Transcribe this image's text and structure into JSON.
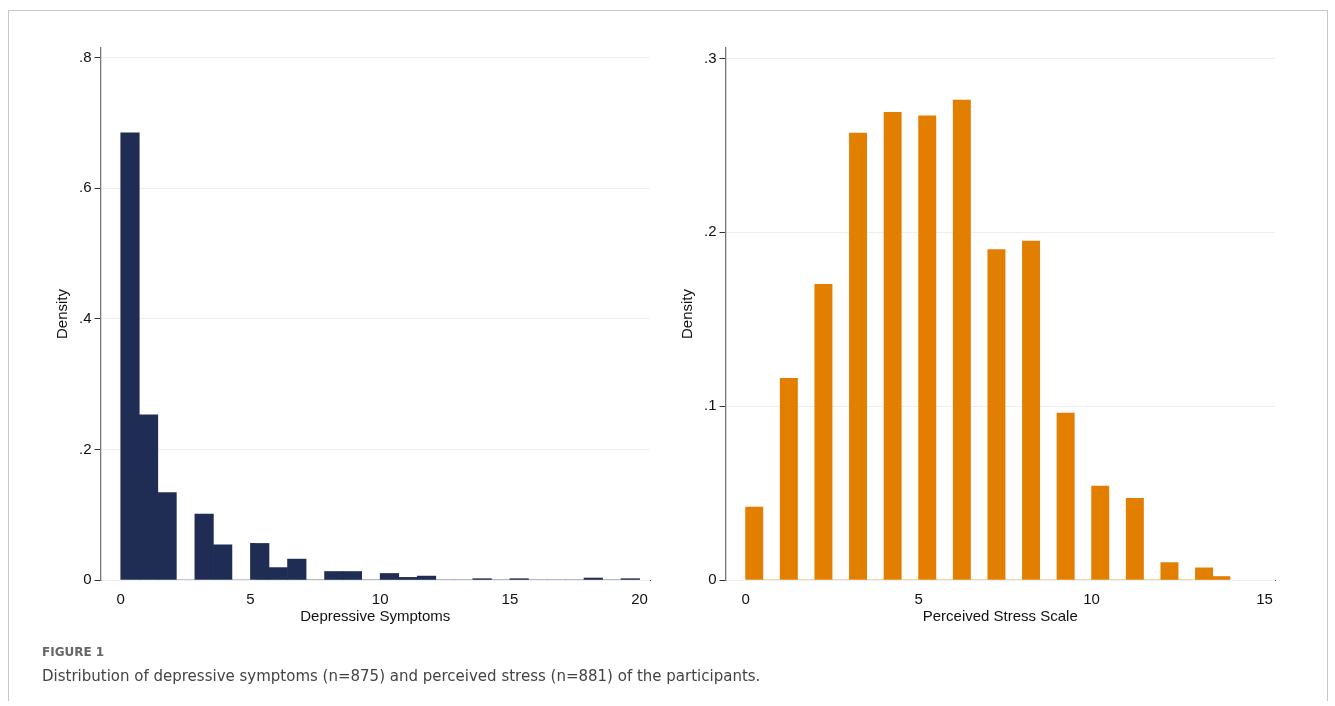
{
  "chart_data": [
    {
      "type": "histogram",
      "xlabel": "Depressive Symptoms",
      "ylabel": "Density",
      "color": "#1f2d54",
      "bins": [
        0,
        0.714,
        1.429,
        2.143,
        2.857,
        3.571,
        4.286,
        5,
        5.714,
        6.429,
        7.143,
        7.857,
        8.571,
        9.286,
        10,
        10.714,
        11.429,
        12.143,
        12.857,
        13.571,
        14.286,
        15,
        15.714,
        16.429,
        17.143,
        17.857,
        18.571,
        19.286,
        20
      ],
      "values": [
        0.685,
        0.253,
        0.134,
        0,
        0.101,
        0.054,
        0,
        0.056,
        0.019,
        0.032,
        0,
        0.013,
        0.013,
        0,
        0.01,
        0.004,
        0.006,
        0,
        0,
        0.002,
        0,
        0.002,
        0,
        0,
        0,
        0.003,
        0,
        0.002
      ],
      "xlim": [
        -0.78,
        20.4
      ],
      "xticks": [
        0,
        5,
        10,
        15,
        20
      ],
      "ylim": [
        0,
        0.815
      ],
      "yticks": [
        {
          "value": 0,
          "label": "0"
        },
        {
          "value": 0.2,
          "label": ".2"
        },
        {
          "value": 0.4,
          "label": ".4"
        },
        {
          "value": 0.6,
          "label": ".6"
        },
        {
          "value": 0.8,
          "label": ".8"
        }
      ],
      "grid": "y",
      "annotations": [
        "FIGURE 1",
        "Distribution of depressive symptoms (n=875) and perceived stress (n=881) of the participants."
      ]
    },
    {
      "type": "histogram",
      "xlabel": "Perceived Stress Scale",
      "ylabel": "Density",
      "color": "#e37f00",
      "bins": [
        0,
        0.5,
        1,
        1.5,
        2,
        2.5,
        3,
        3.5,
        4,
        4.5,
        5,
        5.5,
        6,
        6.5,
        7,
        7.5,
        8,
        8.5,
        9,
        9.5,
        10,
        10.5,
        11,
        11.5,
        12,
        12.5,
        13,
        13.5,
        14
      ],
      "values": [
        0.042,
        0,
        0.116,
        0,
        0.17,
        0,
        0.257,
        0,
        0.269,
        0,
        0.267,
        0,
        0.276,
        0,
        0.19,
        0,
        0.195,
        0,
        0.096,
        0,
        0.054,
        0,
        0.047,
        0,
        0.01,
        0,
        0.007,
        0.002
      ],
      "xlim": [
        -0.58,
        15.3
      ],
      "xticks": [
        0,
        5,
        10,
        15
      ],
      "ylim": [
        0,
        0.306
      ],
      "yticks": [
        {
          "value": 0,
          "label": "0"
        },
        {
          "value": 0.1,
          "label": ".1"
        },
        {
          "value": 0.2,
          "label": ".2"
        },
        {
          "value": 0.3,
          "label": ".3"
        }
      ],
      "grid": "y"
    }
  ]
}
